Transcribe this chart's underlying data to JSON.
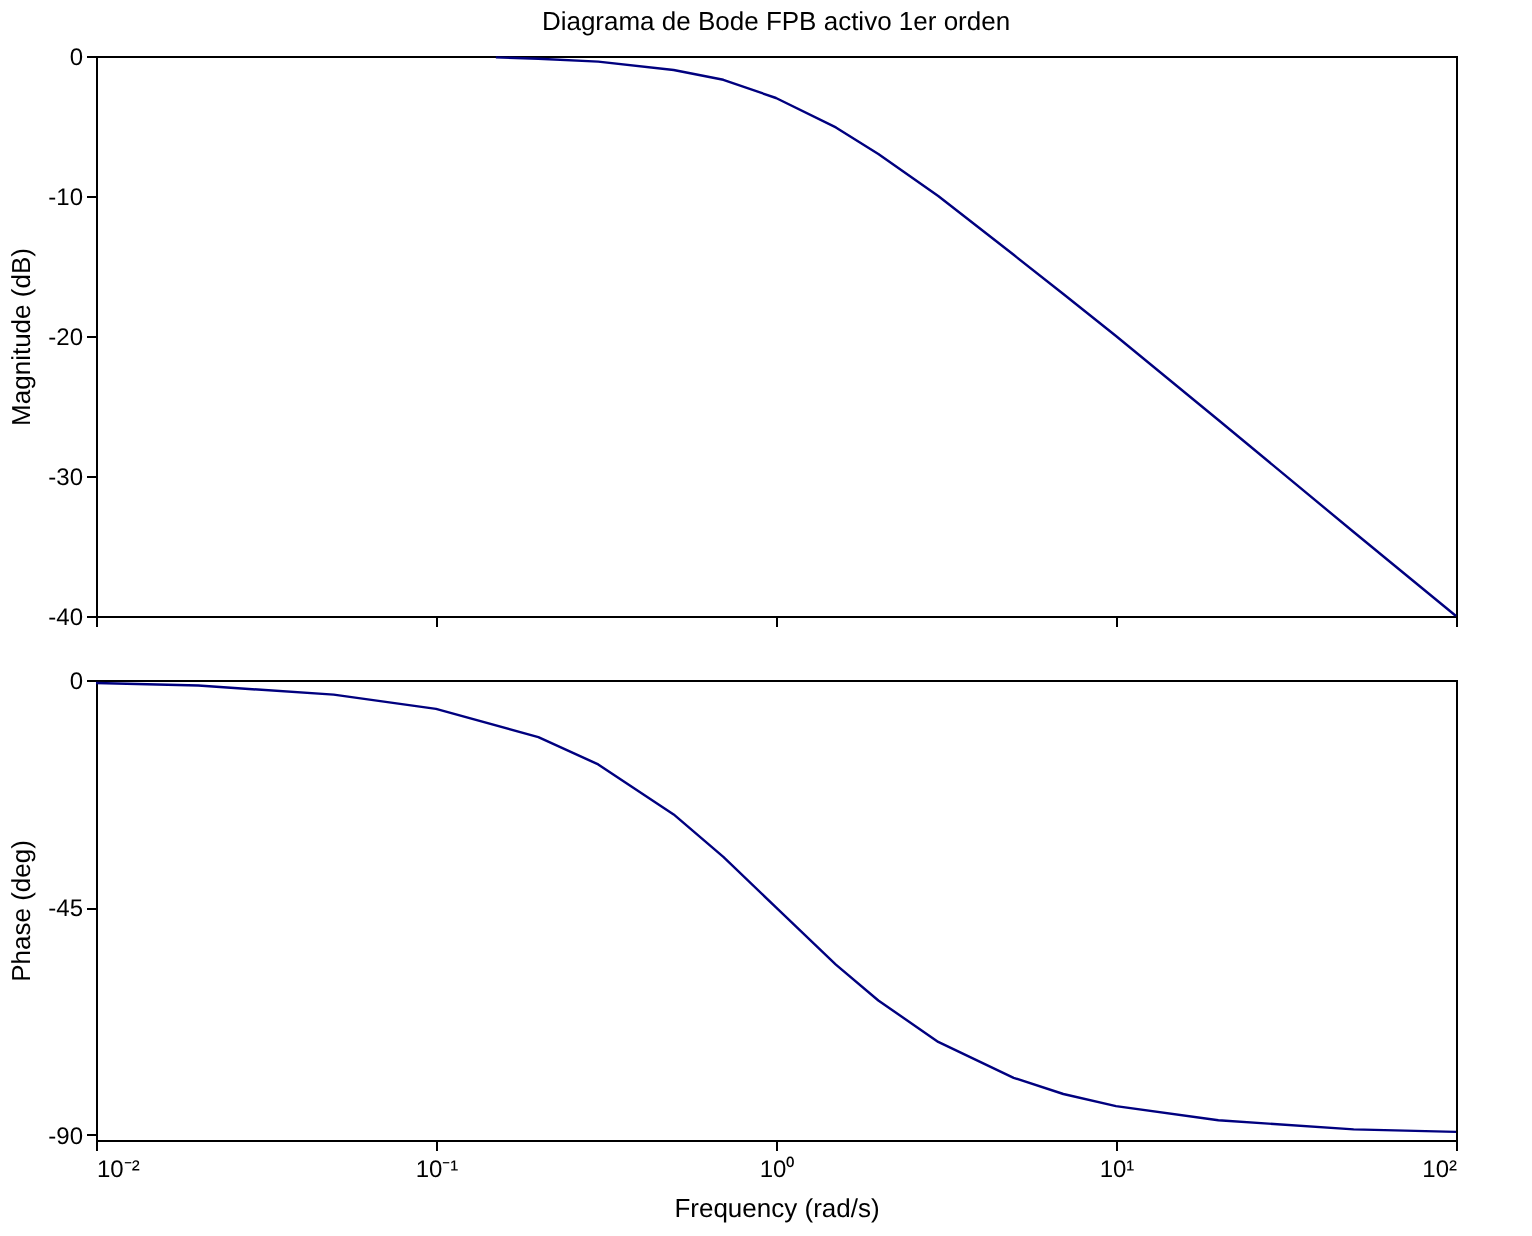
{
  "chart_data": [
    {
      "type": "line",
      "title": "Diagrama de Bode FPB activo 1er orden",
      "ylabel": "Magnitude (dB)",
      "x": [
        0.15,
        0.2,
        0.3,
        0.5,
        0.7,
        1,
        1.5,
        2,
        3,
        5,
        7,
        10,
        20,
        50,
        100
      ],
      "series": [
        {
          "color": "#00007f",
          "values": [
            -0.1,
            -0.2,
            -0.4,
            -1.0,
            -1.7,
            -3.0,
            -5.1,
            -7.0,
            -10.0,
            -14.2,
            -17.0,
            -20.0,
            -26.0,
            -34.0,
            -40.0
          ]
        }
      ],
      "log": "x",
      "xlim": [
        0.01,
        100
      ],
      "xticks": [
        {
          "value": 0.01,
          "label": null
        },
        {
          "value": 0.1,
          "label": null
        },
        {
          "value": 1,
          "label": null
        },
        {
          "value": 10,
          "label": null
        },
        {
          "value": 100,
          "label": null
        }
      ],
      "ylim": [
        -40,
        0
      ],
      "yticks": [
        0,
        -10,
        -20,
        -30,
        -40
      ],
      "tick_labels": "y",
      "grid": false
    },
    {
      "type": "line",
      "xlabel": "Frequency  (rad/s)",
      "ylabel": "Phase (deg)",
      "x": [
        0.01,
        0.02,
        0.05,
        0.1,
        0.2,
        0.3,
        0.5,
        0.7,
        1,
        1.5,
        2,
        3,
        5,
        7,
        10,
        20,
        50,
        100
      ],
      "series": [
        {
          "color": "#00007f",
          "values": [
            -0.6,
            -1.1,
            -2.9,
            -5.7,
            -11.3,
            -16.7,
            -26.6,
            -35.0,
            -45.0,
            -56.3,
            -63.4,
            -71.6,
            -78.7,
            -81.9,
            -84.3,
            -87.1,
            -88.9,
            -89.4
          ]
        }
      ],
      "log": "x",
      "xlim": [
        0.01,
        100
      ],
      "xticks": [
        {
          "value": 0.01,
          "label": "10⁻²"
        },
        {
          "value": 0.1,
          "label": "10⁻¹"
        },
        {
          "value": 1,
          "label": "10⁰"
        },
        {
          "value": 10,
          "label": "10¹"
        },
        {
          "value": 100,
          "label": "10²"
        }
      ],
      "ylim": [
        -91,
        0
      ],
      "yticks": [
        0,
        -45,
        -90
      ],
      "grid": false
    }
  ]
}
